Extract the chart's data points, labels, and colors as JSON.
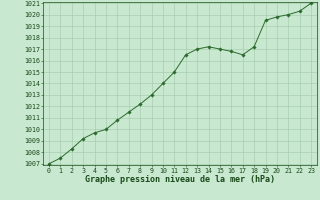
{
  "x": [
    0,
    1,
    2,
    3,
    4,
    5,
    6,
    7,
    8,
    9,
    10,
    11,
    12,
    13,
    14,
    15,
    16,
    17,
    18,
    19,
    20,
    21,
    22,
    23
  ],
  "y": [
    1007.0,
    1007.5,
    1008.3,
    1009.2,
    1009.7,
    1010.0,
    1010.8,
    1011.5,
    1012.2,
    1013.0,
    1014.0,
    1015.0,
    1016.5,
    1017.0,
    1017.2,
    1017.0,
    1016.8,
    1016.5,
    1017.2,
    1019.5,
    1019.8,
    1020.0,
    1020.3,
    1021.0
  ],
  "ylim": [
    1007,
    1021
  ],
  "xlim": [
    -0.5,
    23.5
  ],
  "yticks": [
    1007,
    1008,
    1009,
    1010,
    1011,
    1012,
    1013,
    1014,
    1015,
    1016,
    1017,
    1018,
    1019,
    1020,
    1021
  ],
  "xticks": [
    0,
    1,
    2,
    3,
    4,
    5,
    6,
    7,
    8,
    9,
    10,
    11,
    12,
    13,
    14,
    15,
    16,
    17,
    18,
    19,
    20,
    21,
    22,
    23
  ],
  "line_color": "#2d6a2d",
  "marker_color": "#2d6a2d",
  "bg_color": "#c8e8d0",
  "grid_color": "#a0c8a8",
  "xlabel": "Graphe pression niveau de la mer (hPa)",
  "xlabel_color": "#1a4a1a",
  "tick_color": "#1a4a1a",
  "tick_fontsize": 4.8,
  "xlabel_fontsize": 6.0
}
